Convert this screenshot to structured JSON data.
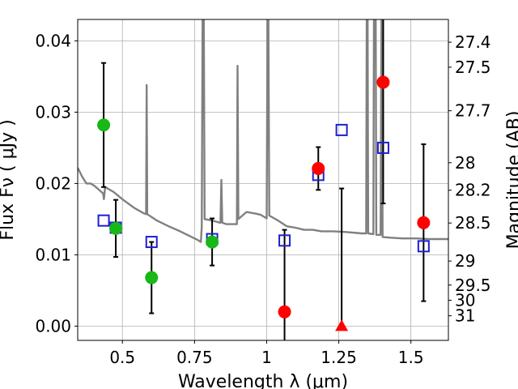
{
  "chart_data": {
    "type": "scatter",
    "x_axis": {
      "label": "Wavelength  λ (μm)",
      "range": [
        0.345,
        1.63
      ],
      "ticks": [
        0.5,
        0.75,
        1,
        1.25,
        1.5
      ],
      "tick_labels": [
        "0.5",
        "0.75",
        "1",
        "1.25",
        "1.5"
      ]
    },
    "y_axis_left": {
      "label": "Flux  Fν  ( μJy )",
      "range": [
        -0.002,
        0.043
      ],
      "ticks": [
        0.0,
        0.01,
        0.02,
        0.03,
        0.04
      ],
      "tick_labels": [
        "0.00",
        "0.01",
        "0.02",
        "0.03",
        "0.04"
      ]
    },
    "y_axis_right": {
      "label": "Magnitude (AB)",
      "ticks": [
        27.4,
        27.5,
        27.7,
        28,
        28.2,
        28.5,
        29,
        29.5,
        30,
        31
      ],
      "tick_labels": [
        "27.4",
        "27.5",
        "27.7",
        "28",
        "28.2",
        "28.5",
        "29",
        "29.5",
        "30",
        "31"
      ]
    },
    "grid": true,
    "colors": {
      "ground_based": "#17b817",
      "space_based": "#ff0000",
      "model": "#1f1fd2",
      "sed": "#808080",
      "errorbar": "#000000"
    },
    "series": [
      {
        "marker": "circle",
        "points": [
          {
            "x": 0.435,
            "y": 0.0282,
            "yerr": [
              0.0087,
              0.0087
            ]
          },
          {
            "x": 0.477,
            "y": 0.0137,
            "yerr": [
              0.004,
              0.004
            ]
          },
          {
            "x": 0.601,
            "y": 0.0068,
            "yerr": [
              0.005,
              0.005
            ]
          },
          {
            "x": 0.811,
            "y": 0.0118,
            "yerr": [
              0.0033,
              0.0033
            ]
          }
        ]
      },
      {
        "marker": "circle",
        "points": [
          {
            "x": 1.062,
            "y": 0.002,
            "yerr": [
              0.0115,
              0.0115
            ]
          },
          {
            "x": 1.179,
            "y": 0.0221,
            "yerr": [
              0.003,
              0.003
            ]
          },
          {
            "x": 1.404,
            "y": 0.0342,
            "yerr": [
              0.017,
              0.017
            ]
          },
          {
            "x": 1.544,
            "y": 0.0145,
            "yerr": [
              0.011,
              0.011
            ]
          }
        ]
      },
      {
        "marker": "triangle-up",
        "points": [
          {
            "x": 1.26,
            "y": 0.0,
            "yerr_up": 0.0193
          }
        ]
      },
      {
        "marker": "open-square",
        "points": [
          {
            "x": 0.435,
            "y": 0.0148
          },
          {
            "x": 0.477,
            "y": 0.0138
          },
          {
            "x": 0.601,
            "y": 0.0118
          },
          {
            "x": 0.811,
            "y": 0.0122
          },
          {
            "x": 1.062,
            "y": 0.012
          },
          {
            "x": 1.179,
            "y": 0.0212
          },
          {
            "x": 1.26,
            "y": 0.0275
          },
          {
            "x": 1.404,
            "y": 0.025
          },
          {
            "x": 1.544,
            "y": 0.0112
          }
        ]
      },
      {
        "marker": "line",
        "points": [
          [
            0.345,
            0.0222
          ],
          [
            0.36,
            0.021
          ],
          [
            0.375,
            0.02
          ],
          [
            0.39,
            0.02
          ],
          [
            0.405,
            0.0196
          ],
          [
            0.425,
            0.0189
          ],
          [
            0.433,
            0.0186
          ],
          [
            0.436,
            0.0178
          ],
          [
            0.44,
            0.0195
          ],
          [
            0.47,
            0.0188
          ],
          [
            0.5,
            0.0178
          ],
          [
            0.54,
            0.0166
          ],
          [
            0.575,
            0.0158
          ],
          [
            0.582,
            0.0157
          ],
          [
            0.584,
            0.0338
          ],
          [
            0.586,
            0.0157
          ],
          [
            0.62,
            0.0148
          ],
          [
            0.66,
            0.014
          ],
          [
            0.7,
            0.0133
          ],
          [
            0.74,
            0.0125
          ],
          [
            0.76,
            0.0121
          ],
          [
            0.772,
            0.0118
          ],
          [
            0.775,
            0.014
          ],
          [
            0.778,
            0.043
          ],
          [
            0.782,
            0.043
          ],
          [
            0.785,
            0.015
          ],
          [
            0.8,
            0.0149
          ],
          [
            0.82,
            0.0147
          ],
          [
            0.838,
            0.0145
          ],
          [
            0.84,
            0.0145
          ],
          [
            0.843,
            0.0205
          ],
          [
            0.846,
            0.0145
          ],
          [
            0.86,
            0.0143
          ],
          [
            0.88,
            0.0143
          ],
          [
            0.897,
            0.0143
          ],
          [
            0.899,
            0.0365
          ],
          [
            0.902,
            0.015
          ],
          [
            0.93,
            0.016
          ],
          [
            0.96,
            0.0158
          ],
          [
            0.98,
            0.0156
          ],
          [
            1.0,
            0.0151
          ],
          [
            1.003,
            0.043
          ],
          [
            1.006,
            0.043
          ],
          [
            1.009,
            0.0155
          ],
          [
            1.04,
            0.0148
          ],
          [
            1.07,
            0.014
          ],
          [
            1.1,
            0.0138
          ],
          [
            1.13,
            0.0135
          ],
          [
            1.16,
            0.0135
          ],
          [
            1.19,
            0.0133
          ],
          [
            1.23,
            0.0133
          ],
          [
            1.27,
            0.0132
          ],
          [
            1.3,
            0.0131
          ],
          [
            1.33,
            0.013
          ],
          [
            1.345,
            0.013
          ],
          [
            1.347,
            0.043
          ],
          [
            1.35,
            0.043
          ],
          [
            1.352,
            0.013
          ],
          [
            1.37,
            0.0129
          ],
          [
            1.372,
            0.043
          ],
          [
            1.378,
            0.043
          ],
          [
            1.38,
            0.0128
          ],
          [
            1.395,
            0.0128
          ],
          [
            1.398,
            0.043
          ],
          [
            1.4,
            0.043
          ],
          [
            1.402,
            0.0125
          ],
          [
            1.43,
            0.0124
          ],
          [
            1.47,
            0.0123
          ],
          [
            1.52,
            0.0123
          ],
          [
            1.56,
            0.0122
          ],
          [
            1.6,
            0.0122
          ],
          [
            1.63,
            0.0122
          ]
        ]
      }
    ]
  }
}
